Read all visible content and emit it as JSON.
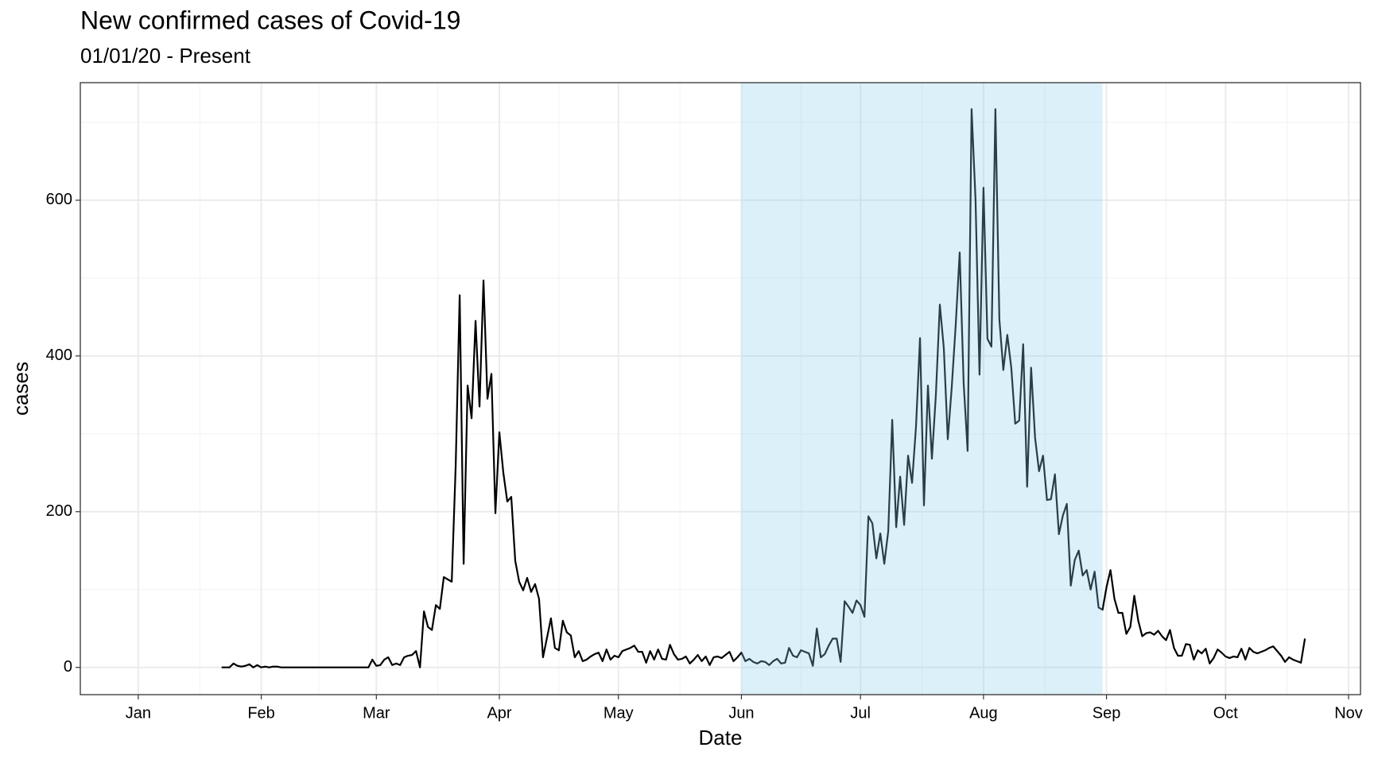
{
  "chart_data": {
    "type": "line",
    "title": "New confirmed cases of Covid-19",
    "subtitle": "01/01/20 - Present",
    "xlabel": "Date",
    "ylabel": "cases",
    "x": [
      21,
      22,
      23,
      24,
      25,
      26,
      27,
      28,
      29,
      30,
      31,
      32,
      33,
      34,
      35,
      36,
      37,
      38,
      39,
      40,
      41,
      42,
      43,
      44,
      45,
      46,
      47,
      48,
      49,
      50,
      51,
      52,
      53,
      54,
      55,
      56,
      57,
      58,
      59,
      60,
      61,
      62,
      63,
      64,
      65,
      66,
      67,
      68,
      69,
      70,
      71,
      72,
      73,
      74,
      75,
      76,
      77,
      78,
      79,
      80,
      81,
      82,
      83,
      84,
      85,
      86,
      87,
      88,
      89,
      90,
      91,
      92,
      93,
      94,
      95,
      96,
      97,
      98,
      99,
      100,
      101,
      102,
      103,
      104,
      105,
      106,
      107,
      108,
      109,
      110,
      111,
      112,
      113,
      114,
      115,
      116,
      117,
      118,
      119,
      120,
      121,
      122,
      123,
      124,
      125,
      126,
      127,
      128,
      129,
      130,
      131,
      132,
      133,
      134,
      135,
      136,
      137,
      138,
      139,
      140,
      141,
      142,
      143,
      144,
      145,
      146,
      147,
      148,
      149,
      150,
      151,
      152,
      153,
      154,
      155,
      156,
      157,
      158,
      159,
      160,
      161,
      162,
      163,
      164,
      165,
      166,
      167,
      168,
      169,
      170,
      171,
      172,
      173,
      174,
      175,
      176,
      177,
      178,
      179,
      180,
      181,
      182,
      183,
      184,
      185,
      186,
      187,
      188,
      189,
      190,
      191,
      192,
      193,
      194,
      195,
      196,
      197,
      198,
      199,
      200,
      201,
      202,
      203,
      204,
      205,
      206,
      207,
      208,
      209,
      210,
      211,
      212,
      213,
      214,
      215,
      216,
      217,
      218,
      219,
      220,
      221,
      222,
      223,
      224,
      225,
      226,
      227,
      228,
      229,
      230,
      231,
      232,
      233,
      234,
      235,
      236,
      237,
      238,
      239,
      240,
      241,
      242,
      243,
      244,
      245,
      246,
      247,
      248,
      249,
      250,
      251,
      252,
      253,
      254,
      255,
      256,
      257,
      258,
      259,
      260,
      261,
      262,
      263,
      264,
      265,
      266,
      267,
      268,
      269,
      270,
      271,
      272,
      273,
      274,
      275,
      276,
      277,
      278,
      279,
      280,
      281,
      282,
      283,
      284,
      285,
      286,
      287,
      288,
      289,
      290,
      291,
      292,
      293,
      294
    ],
    "values": [
      0,
      0,
      0,
      5,
      2,
      1,
      2,
      4,
      0,
      3,
      0,
      1,
      0,
      1,
      1,
      0,
      0,
      0,
      0,
      0,
      0,
      0,
      0,
      0,
      0,
      0,
      0,
      0,
      0,
      0,
      0,
      0,
      0,
      0,
      0,
      0,
      0,
      0,
      10,
      2,
      3,
      10,
      13,
      3,
      5,
      3,
      13,
      15,
      16,
      21,
      0,
      72,
      52,
      48,
      80,
      75,
      116,
      113,
      110,
      260,
      478,
      133,
      362,
      320,
      445,
      335,
      497,
      345,
      377,
      198,
      302,
      250,
      213,
      219,
      137,
      110,
      99,
      115,
      97,
      107,
      88,
      13,
      38,
      63,
      25,
      22,
      60,
      45,
      41,
      13,
      21,
      8,
      10,
      14,
      17,
      19,
      8,
      23,
      10,
      15,
      13,
      21,
      23,
      25,
      28,
      20,
      20,
      6,
      21,
      10,
      23,
      11,
      10,
      29,
      17,
      10,
      11,
      14,
      5,
      10,
      16,
      8,
      14,
      3,
      13,
      14,
      12,
      16,
      20,
      8,
      13,
      19,
      8,
      11,
      7,
      5,
      8,
      7,
      3,
      8,
      11,
      5,
      6,
      25,
      15,
      13,
      22,
      20,
      18,
      2,
      50,
      13,
      17,
      28,
      37,
      37,
      7,
      85,
      78,
      70,
      86,
      80,
      65,
      194,
      185,
      140,
      172,
      133,
      175,
      318,
      180,
      245,
      183,
      272,
      237,
      310,
      423,
      208,
      362,
      268,
      350,
      466,
      410,
      293,
      360,
      440,
      533,
      365,
      278,
      717,
      600,
      376,
      616,
      422,
      412,
      717,
      447,
      382,
      427,
      385,
      313,
      317,
      415,
      232,
      385,
      295,
      252,
      272,
      215,
      216,
      248,
      171,
      195,
      210,
      105,
      138,
      150,
      118,
      125,
      100,
      123,
      77,
      74,
      103,
      125,
      88,
      70,
      70,
      43,
      52,
      92,
      60,
      40,
      44,
      45,
      42,
      47,
      40,
      35,
      48,
      25,
      15,
      15,
      30,
      29,
      10,
      22,
      18,
      24,
      5,
      12,
      23,
      19,
      14,
      12,
      14,
      13,
      24,
      10,
      25,
      20,
      18,
      20,
      22,
      25,
      27,
      21,
      15,
      7,
      13,
      10,
      8,
      6,
      37
    ],
    "color": "#000000",
    "highlight": {
      "x": [
        152,
        243
      ],
      "color": "#87ceeb",
      "opacity": 0.3
    },
    "xlim": [
      -14.6,
      308
    ],
    "ylim": [
      -35,
      751
    ],
    "xticks": [
      {
        "value": 0,
        "label": "Jan"
      },
      {
        "value": 31,
        "label": "Feb"
      },
      {
        "value": 60,
        "label": "Mar"
      },
      {
        "value": 91,
        "label": "Apr"
      },
      {
        "value": 121,
        "label": "May"
      },
      {
        "value": 152,
        "label": "Jun"
      },
      {
        "value": 182,
        "label": "Jul"
      },
      {
        "value": 213,
        "label": "Aug"
      },
      {
        "value": 244,
        "label": "Sep"
      },
      {
        "value": 274,
        "label": "Oct"
      },
      {
        "value": 305,
        "label": "Nov"
      }
    ],
    "yticks": [
      0,
      200,
      400,
      600
    ],
    "grid": true
  }
}
